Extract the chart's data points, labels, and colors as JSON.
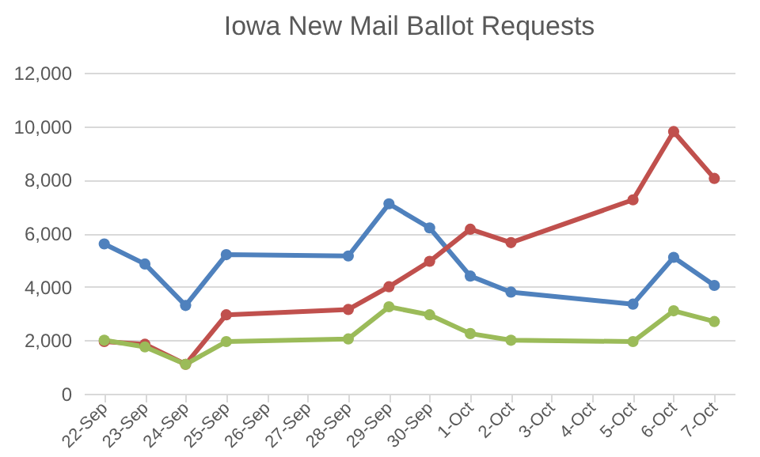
{
  "chart_data": {
    "type": "line",
    "title": "Iowa New Mail Ballot Requests",
    "categories": [
      "22-Sep",
      "23-Sep",
      "24-Sep",
      "25-Sep",
      "26-Sep",
      "27-Sep",
      "28-Sep",
      "29-Sep",
      "30-Sep",
      "1-Oct",
      "2-Oct",
      "3-Oct",
      "4-Oct",
      "5-Oct",
      "6-Oct",
      "7-Oct"
    ],
    "series": [
      {
        "color": "#4f81bd",
        "values": [
          5600,
          4850,
          3300,
          5200,
          null,
          null,
          5150,
          7100,
          6200,
          4400,
          3800,
          null,
          null,
          3350,
          5100,
          4050
        ]
      },
      {
        "color": "#c0504d",
        "values": [
          1950,
          1850,
          1100,
          2950,
          null,
          null,
          3150,
          4000,
          4950,
          6150,
          5650,
          null,
          null,
          7250,
          9800,
          8050
        ]
      },
      {
        "color": "#9bbb59",
        "values": [
          2000,
          1750,
          1100,
          1950,
          null,
          null,
          2050,
          3250,
          2950,
          2250,
          2000,
          null,
          null,
          1950,
          3100,
          2700
        ]
      }
    ],
    "ylim": [
      0,
      12000
    ],
    "yticks": [
      0,
      {
        "value": 2000,
        "label": "2,000"
      },
      {
        "value": 4000,
        "label": "4,000"
      },
      {
        "value": 6000,
        "label": "6,000"
      },
      {
        "value": 8000,
        "label": "8,000"
      },
      {
        "value": 10000,
        "label": "10,000"
      },
      {
        "value": 12000,
        "label": "12,000"
      }
    ],
    "grid": "y",
    "marker": "circle",
    "line_style": "solid"
  }
}
